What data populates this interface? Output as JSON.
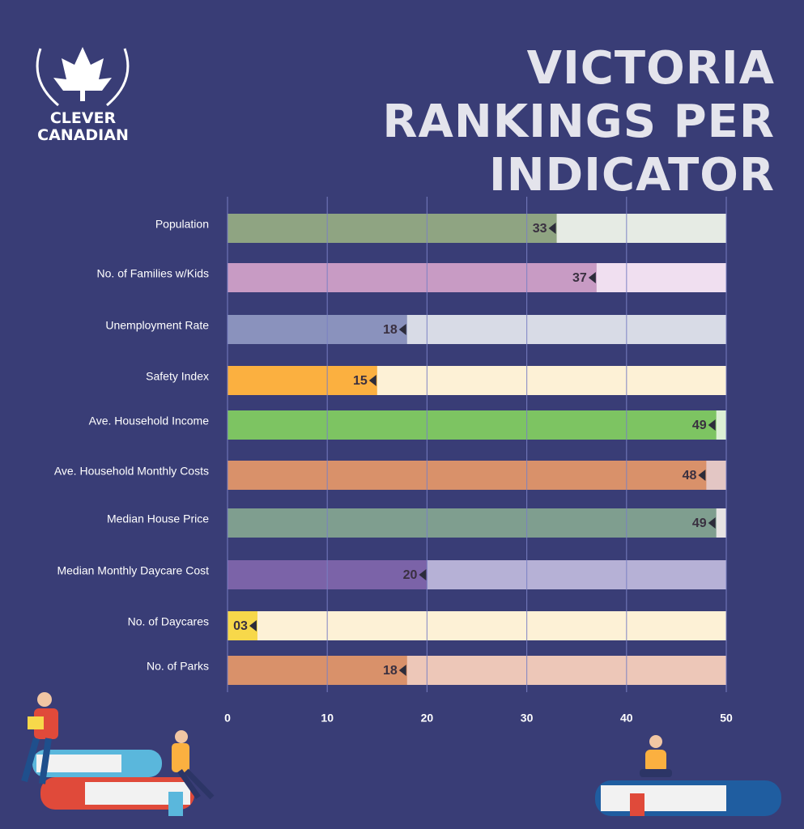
{
  "logo": "CLEVER CANADIAN",
  "chart_data": {
    "type": "bar",
    "orientation": "horizontal",
    "title": "VICTORIA RANKINGS PER INDICATOR",
    "categories": [
      "Population",
      "No. of Families w/Kids",
      "Unemployment Rate",
      "Safety Index",
      "Ave. Household Income",
      "Ave. Household Monthly Costs",
      "Median House Price",
      "Median Monthly Daycare Cost",
      "No. of Daycares",
      "No. of Parks"
    ],
    "values": [
      33,
      37,
      18,
      15,
      49,
      48,
      49,
      20,
      3,
      18
    ],
    "value_labels": [
      "33",
      "37",
      "18",
      "15",
      "49",
      "48",
      "49",
      "20",
      "03",
      "18"
    ],
    "colors": [
      "#8fa482",
      "#c89bc4",
      "#8a92bd",
      "#fbb040",
      "#7dc462",
      "#d9916a",
      "#7f9e8f",
      "#7b63a8",
      "#f7d84a",
      "#d9916a"
    ],
    "track_colors": [
      "#e6ebe4",
      "#f0dff0",
      "#d8dbe6",
      "#fdf1d6",
      "#dcefd4",
      "#e3c6c4",
      "#e7e3e3",
      "#b6b1d6",
      "#fdf1d6",
      "#edc7b8"
    ],
    "xlim": [
      0,
      50
    ],
    "xticks": [
      0,
      10,
      20,
      30,
      40,
      50
    ],
    "grid": true
  }
}
